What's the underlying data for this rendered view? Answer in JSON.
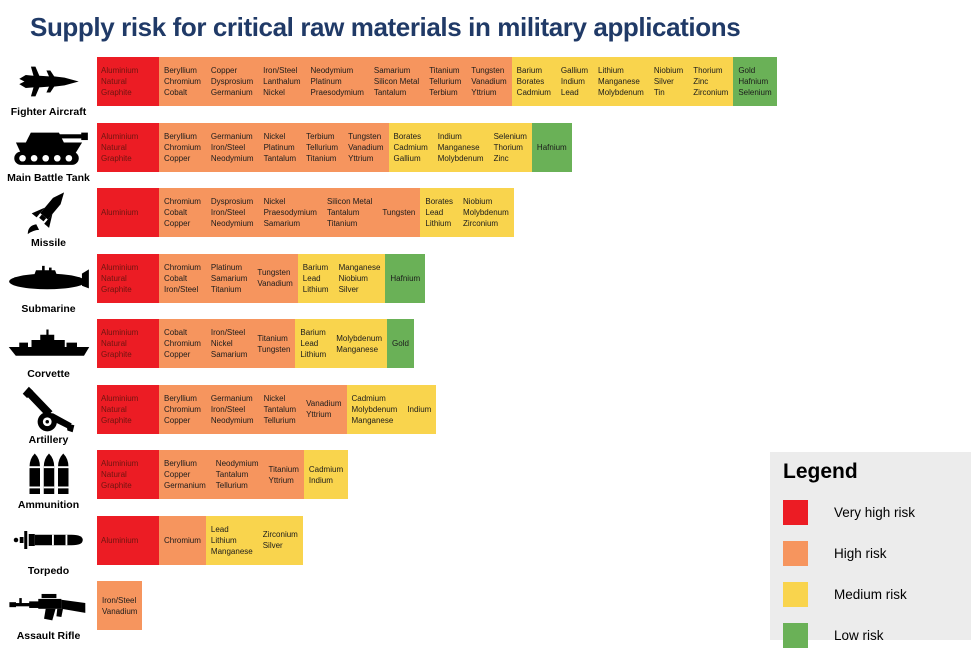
{
  "title": "Supply risk for critical raw materials in military applications",
  "legend_title": "Legend",
  "chart_data": {
    "type": "table",
    "title": "Supply risk for critical raw materials in military applications",
    "legend_position": "bottom-right",
    "risk_levels": [
      {
        "key": "very_high",
        "label": "Very high risk",
        "color": "#EC1C24"
      },
      {
        "key": "high",
        "label": "High risk",
        "color": "#F6955E"
      },
      {
        "key": "medium",
        "label": "Medium risk",
        "color": "#F9D44D"
      },
      {
        "key": "low",
        "label": "Low risk",
        "color": "#6AB157"
      }
    ],
    "rows": [
      {
        "application": "Fighter Aircraft",
        "icon": "fighter-aircraft-icon",
        "cells": [
          {
            "risk": "very_high",
            "material_columns": [
              [
                "Aluminium",
                "Natural Graphite"
              ]
            ]
          },
          {
            "risk": "high",
            "material_columns": [
              [
                "Beryllium",
                "Chromium",
                "Cobalt"
              ],
              [
                "Copper",
                "Dysprosium",
                "Germanium"
              ],
              [
                "Iron/Steel",
                "Lanthalum",
                "Nickel"
              ],
              [
                "Neodymium",
                "Platinum",
                "Praesodymium"
              ],
              [
                "Samarium",
                "Silicon Metal",
                "Tantalum"
              ],
              [
                "Titanium",
                "Tellurium",
                "Terbium"
              ],
              [
                "Tungsten",
                "Vanadium",
                "Yttrium"
              ]
            ]
          },
          {
            "risk": "medium",
            "material_columns": [
              [
                "Barium",
                "Borates",
                "Cadmium"
              ],
              [
                "Gallium",
                "Indium",
                "Lead"
              ],
              [
                "Lithium",
                "Manganese",
                "Molybdenum"
              ],
              [
                "Niobium",
                "Silver",
                "Tin"
              ],
              [
                "Thorium",
                "Zinc",
                "Zirconium"
              ]
            ]
          },
          {
            "risk": "low",
            "material_columns": [
              [
                "Gold",
                "Hafnium",
                "Selenium"
              ]
            ]
          }
        ]
      },
      {
        "application": "Main Battle Tank",
        "icon": "main-battle-tank-icon",
        "cells": [
          {
            "risk": "very_high",
            "material_columns": [
              [
                "Aluminium",
                "Natural Graphite"
              ]
            ]
          },
          {
            "risk": "high",
            "material_columns": [
              [
                "Beryllium",
                "Chromium",
                "Copper"
              ],
              [
                "Germanium",
                "Iron/Steel",
                "Neodymium"
              ],
              [
                "Nickel",
                "Platinum",
                "Tantalum"
              ],
              [
                "Terbium",
                "Tellurium",
                "Titanium"
              ],
              [
                "Tungsten",
                "Vanadium",
                "Yttrium"
              ]
            ]
          },
          {
            "risk": "medium",
            "material_columns": [
              [
                "Borates",
                "Cadmium",
                "Gallium"
              ],
              [
                "Indium",
                "Manganese",
                "Molybdenum"
              ],
              [
                "Selenium",
                "Thorium",
                "Zinc"
              ]
            ]
          },
          {
            "risk": "low",
            "material_columns": [
              [
                "Hafnium"
              ]
            ]
          }
        ]
      },
      {
        "application": "Missile",
        "icon": "missile-icon",
        "cells": [
          {
            "risk": "very_high",
            "material_columns": [
              [
                "Aluminium"
              ]
            ]
          },
          {
            "risk": "high",
            "material_columns": [
              [
                "Chromium",
                "Cobalt",
                "Copper"
              ],
              [
                "Dysprosium",
                "Iron/Steel",
                "Neodymium"
              ],
              [
                "Nickel",
                "Praesodymium",
                "Samarium"
              ],
              [
                "Silicon Metal",
                "Tantalum",
                "Titanium"
              ],
              [
                "Tungsten"
              ]
            ]
          },
          {
            "risk": "medium",
            "material_columns": [
              [
                "Borates",
                "Lead",
                "Lithium"
              ],
              [
                "Niobium",
                "Molybdenum",
                "Zirconium"
              ]
            ]
          }
        ]
      },
      {
        "application": "Submarine",
        "icon": "submarine-icon",
        "cells": [
          {
            "risk": "very_high",
            "material_columns": [
              [
                "Aluminium",
                "Natural Graphite"
              ]
            ]
          },
          {
            "risk": "high",
            "material_columns": [
              [
                "Chromium",
                "Cobalt",
                "Iron/Steel"
              ],
              [
                "Platinum",
                "Samarium",
                "Titanium"
              ],
              [
                "Tungsten",
                "Vanadium"
              ]
            ]
          },
          {
            "risk": "medium",
            "material_columns": [
              [
                "Barium",
                "Lead",
                "Lithium"
              ],
              [
                "Manganese",
                "Niobium",
                "Silver"
              ]
            ]
          },
          {
            "risk": "low",
            "material_columns": [
              [
                "Hafnium"
              ]
            ]
          }
        ]
      },
      {
        "application": "Corvette",
        "icon": "corvette-icon",
        "cells": [
          {
            "risk": "very_high",
            "material_columns": [
              [
                "Aluminium",
                "Natural Graphite"
              ]
            ]
          },
          {
            "risk": "high",
            "material_columns": [
              [
                "Cobalt",
                "Chromium",
                "Copper"
              ],
              [
                "Iron/Steel",
                "Nickel",
                "Samarium"
              ],
              [
                "Titanium",
                "Tungsten"
              ]
            ]
          },
          {
            "risk": "medium",
            "material_columns": [
              [
                "Barium",
                "Lead",
                "Lithium"
              ],
              [
                "Molybdenum",
                "Manganese"
              ]
            ]
          },
          {
            "risk": "low",
            "material_columns": [
              [
                "Gold"
              ]
            ]
          }
        ]
      },
      {
        "application": "Artillery",
        "icon": "artillery-icon",
        "cells": [
          {
            "risk": "very_high",
            "material_columns": [
              [
                "Aluminium",
                "Natural Graphite"
              ]
            ]
          },
          {
            "risk": "high",
            "material_columns": [
              [
                "Beryllium",
                "Chromium",
                "Copper"
              ],
              [
                "Germanium",
                "Iron/Steel",
                "Neodymium"
              ],
              [
                "Nickel",
                "Tantalum",
                "Tellurium"
              ],
              [
                "Vanadium",
                "Yttrium"
              ]
            ]
          },
          {
            "risk": "medium",
            "material_columns": [
              [
                "Cadmium",
                "Molybdenum",
                "Manganese"
              ],
              [
                "Indium"
              ]
            ]
          }
        ]
      },
      {
        "application": "Ammunition",
        "icon": "ammunition-icon",
        "cells": [
          {
            "risk": "very_high",
            "material_columns": [
              [
                "Aluminium",
                "Natural Graphite"
              ]
            ]
          },
          {
            "risk": "high",
            "material_columns": [
              [
                "Beryllium",
                "Copper",
                "Germanium"
              ],
              [
                "Neodymium",
                "Tantalum",
                "Tellurium"
              ],
              [
                "Titanium",
                "Yttrium"
              ]
            ]
          },
          {
            "risk": "medium",
            "material_columns": [
              [
                "Cadmium",
                "Indium"
              ]
            ]
          }
        ]
      },
      {
        "application": "Torpedo",
        "icon": "torpedo-icon",
        "cells": [
          {
            "risk": "very_high",
            "material_columns": [
              [
                "Aluminium"
              ]
            ]
          },
          {
            "risk": "high",
            "material_columns": [
              [
                "Chromium"
              ]
            ]
          },
          {
            "risk": "medium",
            "material_columns": [
              [
                "Lead",
                "Lithium",
                "Manganese"
              ],
              [
                "Zirconium",
                "Silver"
              ]
            ]
          }
        ]
      },
      {
        "application": "Assault Rifle",
        "icon": "assault-rifle-icon",
        "cells": [
          {
            "risk": "high",
            "material_columns": [
              [
                "Iron/Steel",
                "Vanadium"
              ]
            ]
          }
        ]
      }
    ]
  }
}
